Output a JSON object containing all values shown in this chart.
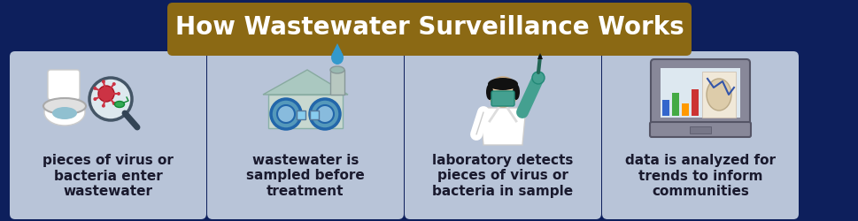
{
  "background_color": "#0d1f5c",
  "title": "How Wastewater Surveillance Works",
  "title_bg_color": "#8B6914",
  "title_text_color": "#ffffff",
  "title_fontsize": 20,
  "card_bg_color": "#b8c4d8",
  "cards": [
    {
      "label": "pieces of virus or\nbacteria enter\nwastewater"
    },
    {
      "label": "wastewater is\nsampled before\ntreatment"
    },
    {
      "label": "laboratory detects\npieces of virus or\nbacteria in sample"
    },
    {
      "label": "data is analyzed for\ntrends to inform\ncommunities"
    }
  ],
  "card_text_color": "#1a1a2e",
  "card_fontsize": 11
}
